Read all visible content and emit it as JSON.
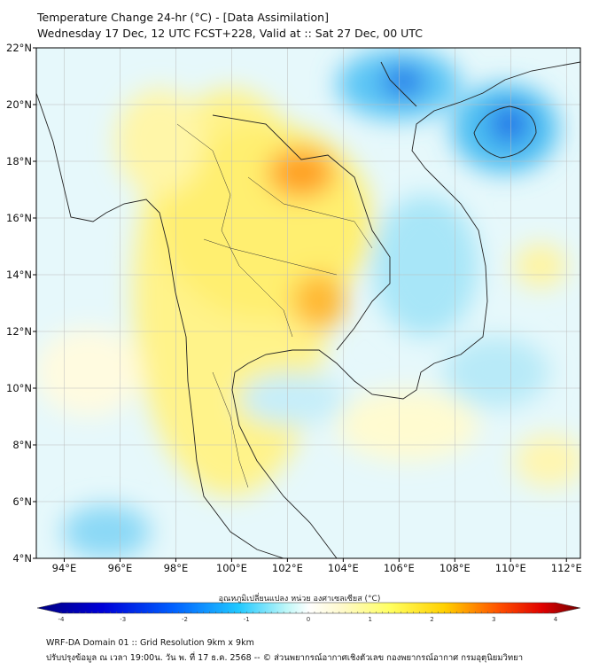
{
  "header": {
    "title": "Temperature Change 24-hr (°C) - [Data Assimilation]",
    "subtitle": "Wednesday 17 Dec, 12 UTC FCST+228, Valid at :: Sat 27 Dec, 00 UTC"
  },
  "map": {
    "lat_labels": [
      "22°N",
      "20°N",
      "18°N",
      "16°N",
      "14°N",
      "12°N",
      "10°N",
      "8°N",
      "6°N",
      "4°N"
    ],
    "lat_values": [
      22,
      20,
      18,
      16,
      14,
      12,
      10,
      8,
      6,
      4
    ],
    "lon_labels": [
      "94°E",
      "96°E",
      "98°E",
      "100°E",
      "102°E",
      "104°E",
      "106°E",
      "108°E",
      "110°E",
      "112°E"
    ],
    "lon_values": [
      94,
      96,
      98,
      100,
      102,
      104,
      106,
      108,
      110,
      112
    ],
    "extent": {
      "lon": [
        93,
        112.5
      ],
      "lat": [
        4,
        22
      ]
    }
  },
  "colorbar": {
    "title": "อุณหภูมิเปลี่ยนแปลง หน่วย องศาเซลเซียส (°C)",
    "ticks": [
      "-4",
      "-3",
      "-2",
      "-1",
      "0",
      "1",
      "2",
      "3",
      "4"
    ],
    "range": [
      -4,
      4
    ],
    "colors": [
      "#000080",
      "#0000d8",
      "#0050ff",
      "#00a8ff",
      "#40e0f0",
      "#c0f8f8",
      "#ffffff",
      "#fffacd",
      "#ffff60",
      "#ffd800",
      "#ff8c00",
      "#ff2000",
      "#d00000",
      "#700000"
    ]
  },
  "footer": {
    "line1": "WRF-DA Domain 01 :: Grid Resolution 9km x 9km",
    "line2": "ปรับปรุงข้อมูล ณ เวลา 19:00น. วัน พ. ที่ 17 ธ.ค. 2568 -- © ส่วนพยากรณ์อากาศเชิงตัวเลข กองพยากรณ์อากาศ กรมอุตุนิยมวิทยา"
  }
}
